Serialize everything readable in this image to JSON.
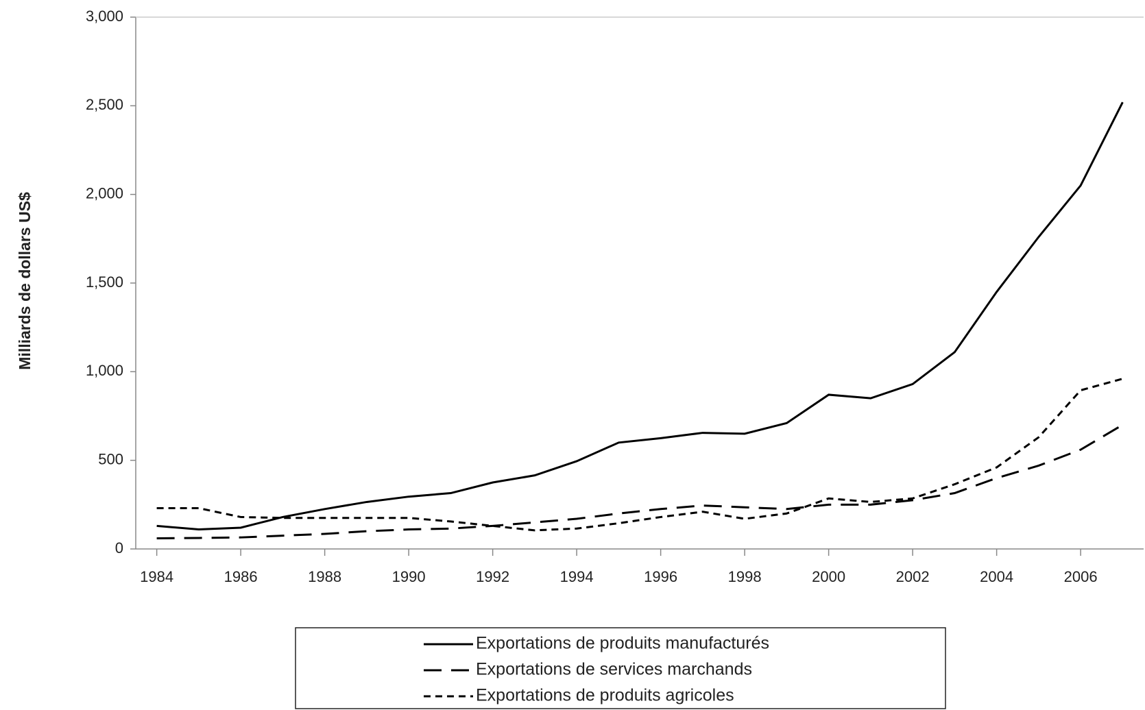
{
  "chart_data": {
    "type": "line",
    "ylabel": "Milliards de dollars US$",
    "x": [
      1984,
      1985,
      1986,
      1987,
      1988,
      1989,
      1990,
      1991,
      1992,
      1993,
      1994,
      1995,
      1996,
      1997,
      1998,
      1999,
      2000,
      2001,
      2002,
      2003,
      2004,
      2005,
      2006,
      2007
    ],
    "xlim": [
      1983.5,
      2007.5
    ],
    "xticks": [
      1984,
      1986,
      1988,
      1990,
      1992,
      1994,
      1996,
      1998,
      2000,
      2002,
      2004,
      2006
    ],
    "ylim": [
      0,
      3000
    ],
    "yticks": [
      0,
      500,
      {
        "value": 1000,
        "label": "1,000"
      },
      {
        "value": 1500,
        "label": "1,500"
      },
      {
        "value": 2000,
        "label": "2,000"
      },
      {
        "value": 2500,
        "label": "2,500"
      },
      {
        "value": 3000,
        "label": "3,000"
      }
    ],
    "grid": false,
    "legend": "bottom",
    "series": [
      {
        "name": "Exportations de produits manufacturés",
        "color": "#000000",
        "dash": "solid",
        "values": [
          130,
          110,
          120,
          180,
          225,
          265,
          295,
          315,
          375,
          415,
          495,
          600,
          625,
          655,
          650,
          710,
          870,
          850,
          930,
          1110,
          1450,
          1760,
          2050,
          2520
        ]
      },
      {
        "name": "Exportations de services marchands",
        "color": "#000000",
        "dash": "long",
        "values": [
          60,
          62,
          65,
          75,
          85,
          100,
          110,
          115,
          130,
          150,
          170,
          200,
          225,
          245,
          235,
          225,
          250,
          250,
          275,
          315,
          400,
          470,
          560,
          700
        ]
      },
      {
        "name": "Exportations de produits agricoles",
        "color": "#000000",
        "dash": "short",
        "values": [
          230,
          230,
          180,
          175,
          175,
          175,
          175,
          155,
          130,
          105,
          115,
          145,
          180,
          210,
          170,
          200,
          285,
          265,
          285,
          365,
          460,
          630,
          895,
          960
        ]
      }
    ]
  }
}
